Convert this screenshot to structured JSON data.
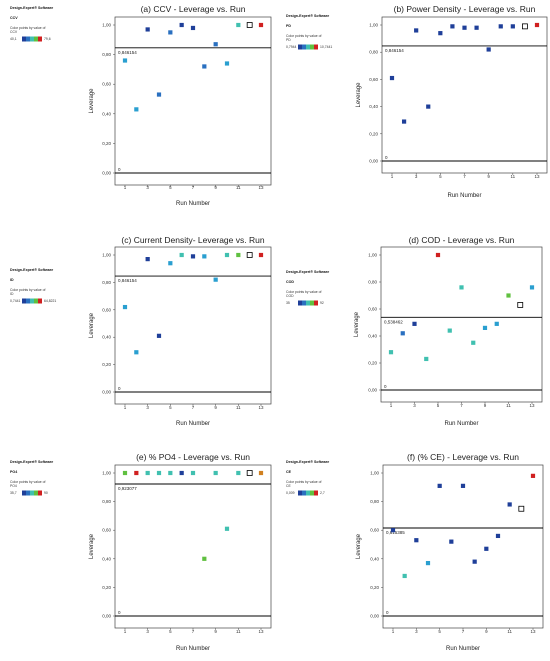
{
  "side_panel": {
    "software": "Design-Expert® Software",
    "color_by": "Color points by value of"
  },
  "chart_data": [
    {
      "type": "scatter",
      "title": "(a) CCV - Leverage vs. Run",
      "xlabel": "Run Number",
      "ylabel": "Leverage",
      "xlim": [
        1,
        13
      ],
      "ylim": [
        0,
        1
      ],
      "xticks": [
        "1",
        "3",
        "5",
        "7",
        "9",
        "11",
        "13"
      ],
      "yticks": [
        "0,00",
        "0,20",
        "0,40",
        "0,60",
        "0,80",
        "1,00"
      ],
      "threshold": 0.846154,
      "threshold_label": "0,846154",
      "zero_label": "0",
      "side_response": "CCV",
      "legend_min": "40,1",
      "legend_max": "79,6",
      "points": [
        {
          "x": 1,
          "y": 0.76,
          "c": "#2a9fd0",
          "h": false
        },
        {
          "x": 2,
          "y": 0.43,
          "c": "#2a9fd0",
          "h": false
        },
        {
          "x": 3,
          "y": 0.97,
          "c": "#1f3f99",
          "h": false
        },
        {
          "x": 4,
          "y": 0.53,
          "c": "#2a70c0",
          "h": false
        },
        {
          "x": 5,
          "y": 0.95,
          "c": "#2a70c0",
          "h": false
        },
        {
          "x": 6,
          "y": 1.0,
          "c": "#1f3f99",
          "h": false
        },
        {
          "x": 7,
          "y": 0.98,
          "c": "#1f3f99",
          "h": false
        },
        {
          "x": 8,
          "y": 0.72,
          "c": "#2a70c0",
          "h": false
        },
        {
          "x": 9,
          "y": 0.87,
          "c": "#2a70c0",
          "h": false
        },
        {
          "x": 10,
          "y": 0.74,
          "c": "#2a9fd0",
          "h": false
        },
        {
          "x": 11,
          "y": 1.0,
          "c": "#40c0b0",
          "h": false
        },
        {
          "x": 12,
          "y": 1.0,
          "c": "#ffffff",
          "h": true
        },
        {
          "x": 13,
          "y": 1.0,
          "c": "#d02020",
          "h": false
        }
      ]
    },
    {
      "type": "scatter",
      "title": "(b) Power Density - Leverage vs. Run",
      "xlabel": "Run Number",
      "ylabel": "Leverage",
      "xlim": [
        1,
        13
      ],
      "ylim": [
        0,
        1
      ],
      "xticks": [
        "1",
        "3",
        "5",
        "7",
        "9",
        "11",
        "13"
      ],
      "yticks": [
        "0,00",
        "0,20",
        "0,40",
        "0,60",
        "0,80",
        "1,00"
      ],
      "threshold": 0.846154,
      "threshold_label": "0,846154",
      "zero_label": "0",
      "side_response": "PD",
      "legend_min": "0,7944",
      "legend_max": "10,7441",
      "points": [
        {
          "x": 1,
          "y": 0.61,
          "c": "#1f3f99",
          "h": false
        },
        {
          "x": 2,
          "y": 0.29,
          "c": "#1f3f99",
          "h": false
        },
        {
          "x": 3,
          "y": 0.96,
          "c": "#1f3f99",
          "h": false
        },
        {
          "x": 4,
          "y": 0.4,
          "c": "#1f3f99",
          "h": false
        },
        {
          "x": 5,
          "y": 0.94,
          "c": "#1f3f99",
          "h": false
        },
        {
          "x": 6,
          "y": 0.99,
          "c": "#1f3f99",
          "h": false
        },
        {
          "x": 7,
          "y": 0.98,
          "c": "#1f3f99",
          "h": false
        },
        {
          "x": 8,
          "y": 0.98,
          "c": "#1f3f99",
          "h": false
        },
        {
          "x": 9,
          "y": 0.82,
          "c": "#1f3f99",
          "h": false
        },
        {
          "x": 10,
          "y": 0.99,
          "c": "#1f3f99",
          "h": false
        },
        {
          "x": 11,
          "y": 0.99,
          "c": "#1f3f99",
          "h": false
        },
        {
          "x": 12,
          "y": 0.99,
          "c": "#ffffff",
          "h": true
        },
        {
          "x": 13,
          "y": 1.0,
          "c": "#d02020",
          "h": false
        }
      ]
    },
    {
      "type": "scatter",
      "title": "(c) Current Density- Leverage vs. Run",
      "xlabel": "Run Number",
      "ylabel": "Leverage",
      "xlim": [
        1,
        13
      ],
      "ylim": [
        0,
        1
      ],
      "xticks": [
        "1",
        "3",
        "5",
        "7",
        "9",
        "11",
        "13"
      ],
      "yticks": [
        "0,00",
        "0,20",
        "0,40",
        "0,60",
        "0,80",
        "1,00"
      ],
      "threshold": 0.846154,
      "threshold_label": "0,846154",
      "zero_label": "0",
      "side_response": "ID",
      "legend_min": "0,7441",
      "legend_max": "64,8221",
      "points": [
        {
          "x": 1,
          "y": 0.62,
          "c": "#2a9fd0",
          "h": false
        },
        {
          "x": 2,
          "y": 0.29,
          "c": "#2a9fd0",
          "h": false
        },
        {
          "x": 3,
          "y": 0.97,
          "c": "#1f3f99",
          "h": false
        },
        {
          "x": 4,
          "y": 0.41,
          "c": "#1f3f99",
          "h": false
        },
        {
          "x": 5,
          "y": 0.94,
          "c": "#2a9fd0",
          "h": false
        },
        {
          "x": 6,
          "y": 1.0,
          "c": "#40c0b0",
          "h": false
        },
        {
          "x": 7,
          "y": 0.99,
          "c": "#1f3f99",
          "h": false
        },
        {
          "x": 8,
          "y": 0.99,
          "c": "#2a9fd0",
          "h": false
        },
        {
          "x": 9,
          "y": 0.82,
          "c": "#2a9fd0",
          "h": false
        },
        {
          "x": 10,
          "y": 1.0,
          "c": "#40c0b0",
          "h": false
        },
        {
          "x": 11,
          "y": 1.0,
          "c": "#60c040",
          "h": false
        },
        {
          "x": 12,
          "y": 1.0,
          "c": "#ffffff",
          "h": true
        },
        {
          "x": 13,
          "y": 1.0,
          "c": "#d02020",
          "h": false
        }
      ]
    },
    {
      "type": "scatter",
      "title": "(d) COD - Leverage vs. Run",
      "xlabel": "Run Number",
      "ylabel": "Leverage",
      "xlim": [
        1,
        13
      ],
      "ylim": [
        0,
        1
      ],
      "xticks": [
        "1",
        "3",
        "5",
        "7",
        "9",
        "11",
        "13"
      ],
      "yticks": [
        "0,00",
        "0,20",
        "0,40",
        "0,60",
        "0,80",
        "1,00"
      ],
      "threshold": 0.538462,
      "threshold_label": "0,538462",
      "zero_label": "0",
      "side_response": "COD",
      "legend_min": "35",
      "legend_max": "92",
      "points": [
        {
          "x": 1,
          "y": 0.28,
          "c": "#40c0b0",
          "h": false
        },
        {
          "x": 2,
          "y": 0.42,
          "c": "#2a70c0",
          "h": false
        },
        {
          "x": 3,
          "y": 0.49,
          "c": "#1f3f99",
          "h": false
        },
        {
          "x": 4,
          "y": 0.23,
          "c": "#40c0b0",
          "h": false
        },
        {
          "x": 5,
          "y": 1.0,
          "c": "#d02020",
          "h": false
        },
        {
          "x": 6,
          "y": 0.44,
          "c": "#40c0b0",
          "h": false
        },
        {
          "x": 7,
          "y": 0.76,
          "c": "#40c0b0",
          "h": false
        },
        {
          "x": 8,
          "y": 0.35,
          "c": "#40c0b0",
          "h": false
        },
        {
          "x": 9,
          "y": 0.46,
          "c": "#2a9fd0",
          "h": false
        },
        {
          "x": 10,
          "y": 0.49,
          "c": "#2a9fd0",
          "h": false
        },
        {
          "x": 11,
          "y": 0.7,
          "c": "#60c040",
          "h": false
        },
        {
          "x": 12,
          "y": 0.63,
          "c": "#ffffff",
          "h": true
        },
        {
          "x": 13,
          "y": 0.76,
          "c": "#2a9fd0",
          "h": false
        }
      ]
    },
    {
      "type": "scatter",
      "title": "(e) % PO4 - Leverage vs. Run",
      "xlabel": "Run Number",
      "ylabel": "Leverage",
      "xlim": [
        1,
        13
      ],
      "ylim": [
        0,
        1
      ],
      "xticks": [
        "1",
        "3",
        "5",
        "7",
        "9",
        "11",
        "13"
      ],
      "yticks": [
        "0,00",
        "0,20",
        "0,40",
        "0,60",
        "0,80",
        "1,00"
      ],
      "threshold": 0.923077,
      "threshold_label": "0,923077",
      "zero_label": "0",
      "side_response": "PO4",
      "legend_min": "35,7",
      "legend_max": "90",
      "points": [
        {
          "x": 1,
          "y": 1.0,
          "c": "#60c040",
          "h": false
        },
        {
          "x": 2,
          "y": 1.0,
          "c": "#d02020",
          "h": false
        },
        {
          "x": 3,
          "y": 1.0,
          "c": "#40c0b0",
          "h": false
        },
        {
          "x": 4,
          "y": 1.0,
          "c": "#40c0b0",
          "h": false
        },
        {
          "x": 5,
          "y": 1.0,
          "c": "#40c0b0",
          "h": false
        },
        {
          "x": 6,
          "y": 1.0,
          "c": "#1f3f99",
          "h": false
        },
        {
          "x": 7,
          "y": 1.0,
          "c": "#40c0b0",
          "h": false
        },
        {
          "x": 8,
          "y": 0.4,
          "c": "#60c040",
          "h": false
        },
        {
          "x": 9,
          "y": 1.0,
          "c": "#40c0b0",
          "h": false
        },
        {
          "x": 10,
          "y": 0.61,
          "c": "#40c0b0",
          "h": false
        },
        {
          "x": 11,
          "y": 1.0,
          "c": "#40c0b0",
          "h": false
        },
        {
          "x": 12,
          "y": 1.0,
          "c": "#ffffff",
          "h": true
        },
        {
          "x": 13,
          "y": 1.0,
          "c": "#d08020",
          "h": false
        }
      ]
    },
    {
      "type": "scatter",
      "title": "(f) (% CE) - Leverage vs. Run",
      "xlabel": "Run Number",
      "ylabel": "Leverage",
      "xlim": [
        1,
        13
      ],
      "ylim": [
        0,
        1
      ],
      "xticks": [
        "1",
        "3",
        "5",
        "7",
        "9",
        "11",
        "13"
      ],
      "yticks": [
        "0,00",
        "0,20",
        "0,40",
        "0,60",
        "0,80",
        "1,00"
      ],
      "threshold": 0.615385,
      "threshold_label": "0,615385",
      "zero_label": "0",
      "side_response": "CE",
      "legend_min": "0,009",
      "legend_max": "2,7",
      "points": [
        {
          "x": 1,
          "y": 0.6,
          "c": "#1f3f99",
          "h": false
        },
        {
          "x": 2,
          "y": 0.28,
          "c": "#40c0b0",
          "h": false
        },
        {
          "x": 3,
          "y": 0.53,
          "c": "#1f3f99",
          "h": false
        },
        {
          "x": 4,
          "y": 0.37,
          "c": "#2a9fd0",
          "h": false
        },
        {
          "x": 5,
          "y": 0.91,
          "c": "#1f3f99",
          "h": false
        },
        {
          "x": 6,
          "y": 0.52,
          "c": "#1f3f99",
          "h": false
        },
        {
          "x": 7,
          "y": 0.91,
          "c": "#1f3f99",
          "h": false
        },
        {
          "x": 8,
          "y": 0.38,
          "c": "#1f3f99",
          "h": false
        },
        {
          "x": 9,
          "y": 0.47,
          "c": "#1f3f99",
          "h": false
        },
        {
          "x": 10,
          "y": 0.56,
          "c": "#1f3f99",
          "h": false
        },
        {
          "x": 11,
          "y": 0.78,
          "c": "#1f3f99",
          "h": false
        },
        {
          "x": 12,
          "y": 0.75,
          "c": "#ffffff",
          "h": true
        },
        {
          "x": 13,
          "y": 0.98,
          "c": "#d02020",
          "h": false
        }
      ]
    }
  ]
}
